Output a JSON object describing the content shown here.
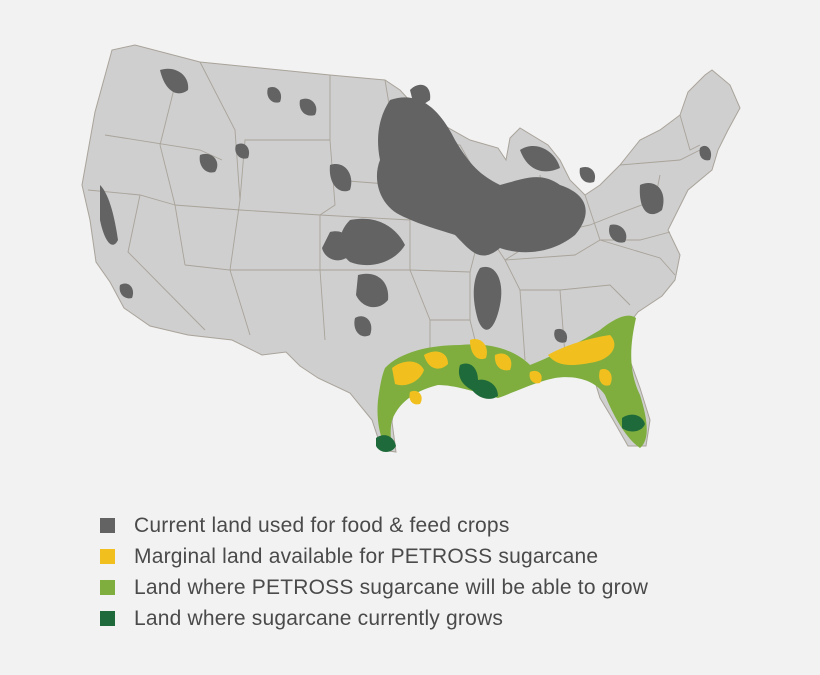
{
  "colors": {
    "background": "#f2f2f2",
    "land_base": "#cfcfcf",
    "state_border": "#a9a39a",
    "food_feed_crops": "#636363",
    "marginal_land": "#f2c01e",
    "able_to_grow": "#7fae3f",
    "currently_grows": "#1f6a3a"
  },
  "legend": {
    "items": [
      {
        "label": "Current land used for food & feed crops",
        "color": "#636363"
      },
      {
        "label": "Marginal land available for PETROSS sugarcane",
        "color": "#f2c01e"
      },
      {
        "label": "Land where PETROSS sugarcane will be able to grow",
        "color": "#7fae3f"
      },
      {
        "label": "Land where sugarcane currently grows",
        "color": "#1f6a3a"
      }
    ]
  }
}
